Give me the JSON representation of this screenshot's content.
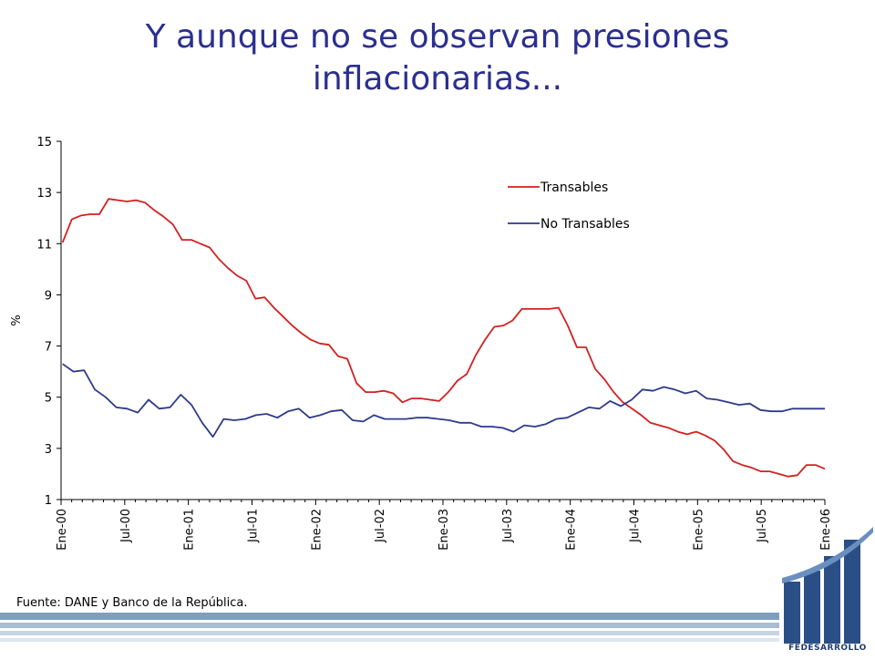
{
  "slide": {
    "title_line1": "Y aunque no se observan presiones",
    "title_line2": "inflacionarias...",
    "source": "Fuente: DANE y Banco de la República.",
    "logo_text": "FEDESARROLLO"
  },
  "colors": {
    "title": "#2b2f8f",
    "transables": "#d42020",
    "no_transables": "#2e3a8c",
    "footer": "#7f9fbf"
  },
  "chart_data": {
    "type": "line",
    "ylabel": "%",
    "xlabel": "",
    "ylim": [
      1,
      15
    ],
    "yticks": [
      1,
      3,
      5,
      7,
      9,
      11,
      13,
      15
    ],
    "x_tick_labels": [
      "Ene-00",
      "Jul-00",
      "Ene-01",
      "Jul-01",
      "Ene-02",
      "Jul-02",
      "Ene-03",
      "Jul-03",
      "Ene-04",
      "Jul-04",
      "Ene-05",
      "Jul-05",
      "Ene-06"
    ],
    "x_tick_months": [
      0,
      6,
      12,
      18,
      24,
      30,
      36,
      42,
      48,
      54,
      60,
      66,
      72
    ],
    "x_start": "Ene-00",
    "x_end": "Ene-06",
    "legend_position": "top-right",
    "series": [
      {
        "name": "Transables",
        "values": [
          11.05,
          11.95,
          12.1,
          12.15,
          12.15,
          12.75,
          12.7,
          12.65,
          12.7,
          12.6,
          12.3,
          12.05,
          11.75,
          11.15,
          11.15,
          11.0,
          10.85,
          10.4,
          10.05,
          9.75,
          9.55,
          8.85,
          8.9,
          8.5,
          8.15,
          7.8,
          7.5,
          7.25,
          7.1,
          7.05,
          6.6,
          6.5,
          5.55,
          5.2,
          5.2,
          5.25,
          5.15,
          4.8,
          4.95,
          4.95,
          4.9,
          4.85,
          5.2,
          5.65,
          5.9,
          6.65,
          7.25,
          7.75,
          7.8,
          8.0,
          8.45,
          8.45,
          8.45,
          8.45,
          8.5,
          7.8,
          6.95,
          6.95,
          6.1,
          5.7,
          5.2,
          4.8,
          4.55,
          4.3,
          4.0,
          3.9,
          3.8,
          3.65,
          3.55,
          3.65,
          3.5,
          3.3,
          2.95,
          2.5,
          2.35,
          2.25,
          2.1,
          2.1,
          2.0,
          1.9,
          1.95,
          2.35,
          2.35,
          2.2
        ]
      },
      {
        "name": "No Transables",
        "values": [
          6.3,
          6.0,
          6.05,
          5.3,
          5.0,
          4.6,
          4.55,
          4.4,
          4.9,
          4.55,
          4.6,
          5.1,
          4.7,
          4.0,
          3.45,
          4.15,
          4.1,
          4.15,
          4.3,
          4.35,
          4.2,
          4.45,
          4.55,
          4.2,
          4.3,
          4.45,
          4.5,
          4.1,
          4.05,
          4.3,
          4.15,
          4.15,
          4.15,
          4.2,
          4.2,
          4.15,
          4.1,
          4.0,
          4.0,
          3.85,
          3.85,
          3.8,
          3.65,
          3.9,
          3.85,
          3.95,
          4.15,
          4.2,
          4.4,
          4.6,
          4.55,
          4.85,
          4.65,
          4.9,
          5.3,
          5.25,
          5.4,
          5.3,
          5.15,
          5.25,
          4.95,
          4.9,
          4.8,
          4.7,
          4.75,
          4.5,
          4.45,
          4.45,
          4.55,
          4.55,
          4.55,
          4.55
        ]
      }
    ]
  }
}
